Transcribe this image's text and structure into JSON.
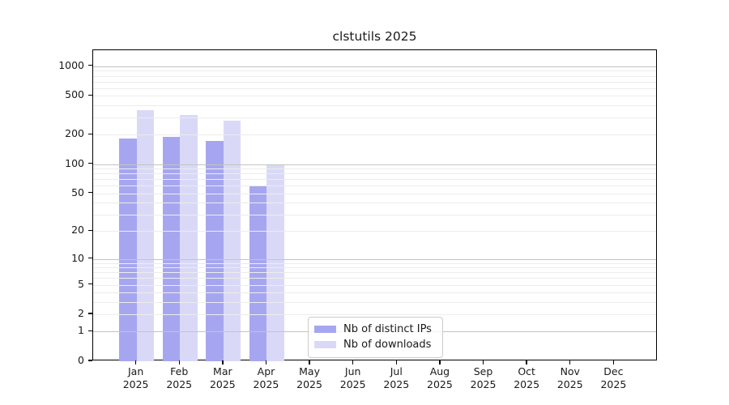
{
  "chart_data": {
    "type": "bar",
    "title": "clstutils 2025",
    "categories": [
      "Jan",
      "Feb",
      "Mar",
      "Apr",
      "May",
      "Jun",
      "Jul",
      "Aug",
      "Sep",
      "Oct",
      "Nov",
      "Dec"
    ],
    "x_tick_year": "2025",
    "series": [
      {
        "key": "distinct-ips",
        "name": "Nb of distinct IPs",
        "color": "#a6a6f0",
        "values": [
          183,
          189,
          172,
          60,
          null,
          null,
          null,
          null,
          null,
          null,
          null,
          null
        ]
      },
      {
        "key": "downloads",
        "name": "Nb of downloads",
        "color": "#d9d9f7",
        "values": [
          358,
          320,
          278,
          100,
          null,
          null,
          null,
          null,
          null,
          null,
          null,
          null
        ]
      }
    ],
    "y_axis": {
      "scale": "log10(1+x)",
      "ticks": [
        0,
        1,
        2,
        5,
        10,
        20,
        50,
        100,
        200,
        500,
        1000
      ],
      "major_gridlines": [
        1,
        10,
        100,
        1000
      ],
      "minor_gridlines": [
        2,
        3,
        4,
        5,
        6,
        7,
        8,
        9,
        20,
        30,
        40,
        50,
        60,
        70,
        80,
        90,
        200,
        300,
        400,
        500,
        600,
        700,
        800,
        900
      ],
      "ylim": [
        0,
        1455
      ]
    },
    "grid": "on",
    "legend_position": "lower center-left"
  },
  "colors": {
    "major_grid": "#c3c3c3",
    "minor_grid": "#ececec",
    "spine": "#000000",
    "text": "#1a1a1a",
    "legend_border": "#cccccc"
  }
}
